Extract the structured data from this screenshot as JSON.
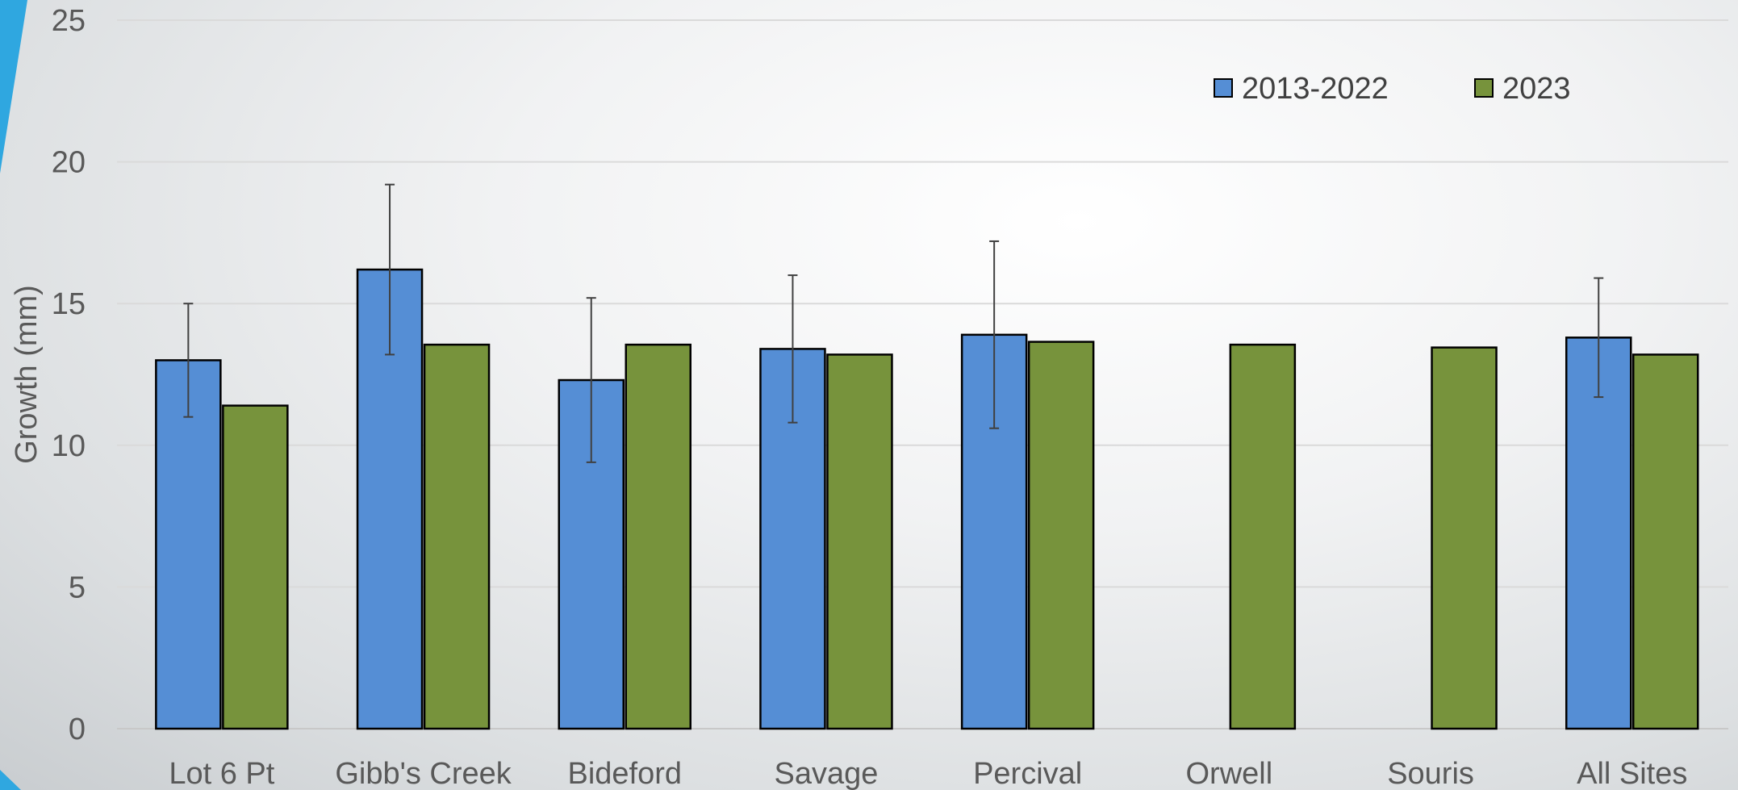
{
  "chart_data": {
    "type": "bar",
    "title": "",
    "xlabel": "",
    "ylabel": "Growth (mm)",
    "ylim": [
      0,
      25
    ],
    "yticks": [
      0,
      5,
      10,
      15,
      20,
      25
    ],
    "grid": true,
    "legend_position": "top-right",
    "categories": [
      "Lot 6 Pt",
      "Gibb's Creek",
      "Bideford",
      "Savage",
      "Percival",
      "Orwell",
      "Souris",
      "All Sites"
    ],
    "series": [
      {
        "name": "2013-2022",
        "color": "#558ED5",
        "values": [
          13.0,
          16.2,
          12.3,
          13.4,
          13.9,
          null,
          null,
          13.8
        ],
        "error": [
          2.0,
          3.0,
          2.9,
          2.6,
          3.3,
          null,
          null,
          2.1
        ]
      },
      {
        "name": "2023",
        "color": "#77933C",
        "values": [
          11.4,
          13.55,
          13.55,
          13.2,
          13.65,
          13.55,
          13.45,
          13.2
        ]
      }
    ]
  }
}
